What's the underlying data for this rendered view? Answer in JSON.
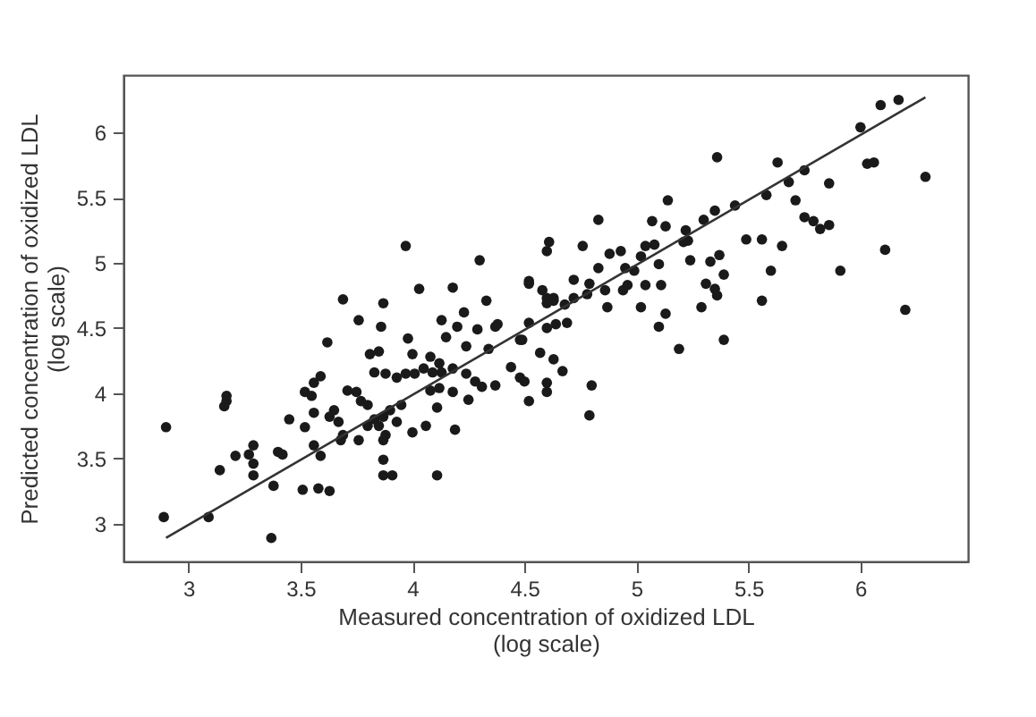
{
  "chart_data": {
    "type": "scatter",
    "xlabel": "Measured concentration of oxidized LDL\n(log scale)",
    "ylabel": "Predicted concentration of oxidized LDL\n(log scale)",
    "xlim": [
      2.71,
      6.48
    ],
    "ylim": [
      2.71,
      6.44
    ],
    "xticks": [
      3,
      3.5,
      4,
      4.5,
      5,
      5.5,
      6
    ],
    "yticks": [
      3,
      3.5,
      4,
      4.5,
      5,
      5.5,
      6
    ],
    "grid": false,
    "series": [
      {
        "color": "#1a1a1a",
        "marker": "circle",
        "x": [
          3.97,
          4.3,
          3.69,
          3.87,
          4.03,
          4.18,
          4.33,
          4.52,
          4.23,
          3.76,
          3.86,
          5.36,
          5.63,
          5.75,
          5.68,
          5.86,
          6.0,
          6.09,
          6.17,
          6.03,
          6.06,
          6.29,
          5.14,
          5.35,
          5.44,
          5.58,
          5.71,
          5.75,
          5.79,
          5.82,
          5.86,
          4.83,
          5.07,
          5.13,
          5.22,
          5.3,
          4.61,
          4.6,
          4.76,
          4.88,
          4.93,
          5.04,
          5.08,
          5.23,
          5.21,
          5.49,
          5.56,
          5.65,
          6.11,
          5.02,
          5.1,
          5.24,
          5.33,
          5.37,
          4.83,
          4.95,
          4.99,
          4.52,
          4.58,
          4.72,
          4.79,
          5.39,
          5.31,
          5.35,
          5.36,
          5.6,
          5.91,
          4.6,
          4.63,
          4.72,
          4.78,
          4.86,
          4.94,
          4.96,
          5.04,
          5.11,
          4.68,
          4.87,
          5.02,
          5.13,
          5.29,
          5.56,
          6.2,
          4.38,
          4.52,
          4.6,
          4.64,
          4.69,
          5.1,
          3.62,
          3.81,
          3.85,
          3.98,
          4.0,
          4.13,
          4.2,
          4.29,
          4.37,
          4.08,
          4.12,
          4.15,
          4.24,
          4.34,
          4.49,
          3.83,
          3.88,
          3.93,
          3.97,
          4.01,
          4.05,
          4.09,
          4.13,
          4.18,
          4.24,
          4.28,
          4.31,
          4.37,
          4.44,
          4.48,
          4.5,
          4.52,
          4.08,
          4.12,
          4.25,
          4.18,
          3.59,
          3.56,
          3.52,
          3.55,
          3.71,
          3.75,
          3.77,
          3.8,
          3.95,
          3.9,
          3.87,
          3.93,
          3.83,
          3.8,
          3.85,
          3.88,
          3.87,
          3.76,
          3.65,
          3.63,
          3.67,
          3.69,
          3.68,
          3.56,
          3.52,
          3.45,
          4.06,
          4.0,
          4.11,
          4.19,
          3.17,
          3.17,
          3.16,
          2.9,
          3.29,
          3.27,
          3.29,
          3.21,
          3.14,
          3.4,
          3.42,
          3.56,
          3.59,
          3.29,
          3.38,
          3.51,
          3.58,
          3.63,
          3.87,
          3.87,
          3.91,
          4.11,
          2.89,
          3.09,
          3.37,
          4.6,
          4.63,
          5.19,
          5.39,
          4.48,
          4.57,
          4.63,
          4.67,
          4.6,
          4.6,
          4.8,
          4.79
        ],
        "values": [
          5.13,
          5.02,
          4.72,
          4.69,
          4.8,
          4.81,
          4.71,
          4.84,
          4.62,
          4.56,
          4.51,
          5.81,
          5.77,
          5.71,
          5.62,
          5.61,
          6.04,
          6.21,
          6.25,
          5.76,
          5.77,
          5.66,
          5.48,
          5.4,
          5.44,
          5.52,
          5.48,
          5.35,
          5.32,
          5.26,
          5.29,
          5.33,
          5.32,
          5.28,
          5.25,
          5.33,
          5.16,
          5.09,
          5.13,
          5.07,
          5.09,
          5.13,
          5.14,
          5.17,
          5.16,
          5.18,
          5.18,
          5.13,
          5.1,
          5.05,
          4.99,
          5.02,
          5.01,
          5.06,
          4.96,
          4.96,
          4.94,
          4.86,
          4.79,
          4.87,
          4.84,
          4.91,
          4.84,
          4.8,
          4.75,
          4.94,
          4.94,
          4.73,
          4.73,
          4.73,
          4.76,
          4.79,
          4.79,
          4.83,
          4.83,
          4.83,
          4.68,
          4.66,
          4.66,
          4.61,
          4.66,
          4.71,
          4.64,
          4.53,
          4.54,
          4.5,
          4.53,
          4.54,
          4.51,
          4.39,
          4.3,
          4.32,
          4.42,
          4.3,
          4.56,
          4.51,
          4.49,
          4.51,
          4.28,
          4.23,
          4.43,
          4.36,
          4.34,
          4.41,
          4.16,
          4.15,
          4.12,
          4.15,
          4.15,
          4.19,
          4.16,
          4.16,
          4.19,
          4.15,
          4.09,
          4.05,
          4.06,
          4.2,
          4.12,
          4.09,
          3.94,
          4.02,
          4.04,
          3.95,
          4.01,
          4.13,
          4.08,
          4.01,
          3.98,
          4.02,
          4.01,
          3.94,
          3.91,
          3.91,
          3.87,
          3.82,
          3.78,
          3.8,
          3.75,
          3.75,
          3.68,
          3.64,
          3.64,
          3.87,
          3.82,
          3.78,
          3.68,
          3.64,
          3.85,
          3.74,
          3.8,
          3.75,
          3.7,
          3.89,
          3.72,
          3.98,
          3.94,
          3.9,
          3.74,
          3.6,
          3.53,
          3.46,
          3.52,
          3.41,
          3.55,
          3.53,
          3.6,
          3.52,
          3.37,
          3.29,
          3.26,
          3.27,
          3.25,
          3.49,
          3.37,
          3.37,
          3.37,
          3.05,
          3.05,
          2.89,
          4.69,
          4.71,
          4.34,
          4.41,
          4.41,
          4.31,
          4.26,
          4.17,
          4.08,
          4.01,
          4.06,
          3.83
        ]
      },
      {
        "type": "line",
        "color": "#333333",
        "line_style": "solid",
        "x": [
          2.9,
          6.29
        ],
        "values": [
          2.89,
          6.27
        ]
      }
    ]
  }
}
